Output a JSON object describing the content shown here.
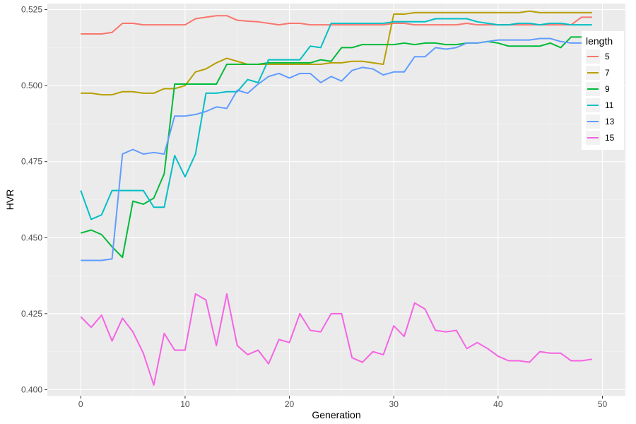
{
  "chart_data": {
    "type": "line",
    "title": "",
    "xlabel": "Generation",
    "ylabel": "HVR",
    "xlim": [
      -3.2,
      52.2
    ],
    "ylim": [
      0.398,
      0.527
    ],
    "x_ticks": [
      0,
      10,
      20,
      30,
      40,
      50
    ],
    "x_tick_labels": [
      "0",
      "10",
      "20",
      "30",
      "40",
      "50"
    ],
    "y_ticks": [
      0.4,
      0.425,
      0.45,
      0.475,
      0.5,
      0.525
    ],
    "y_tick_labels": [
      "0.400",
      "0.425",
      "0.450",
      "0.475",
      "0.500",
      "0.525"
    ],
    "grid": true,
    "panel_background": "#ebebeb",
    "legend": {
      "title": "length",
      "position": "right"
    },
    "x": [
      0,
      1,
      2,
      3,
      4,
      5,
      6,
      7,
      8,
      9,
      10,
      11,
      12,
      13,
      14,
      15,
      16,
      17,
      18,
      19,
      20,
      21,
      22,
      23,
      24,
      25,
      26,
      27,
      28,
      29,
      30,
      31,
      32,
      33,
      34,
      35,
      36,
      37,
      38,
      39,
      40,
      41,
      42,
      43,
      44,
      45,
      46,
      47,
      48,
      49
    ],
    "series": [
      {
        "name": "5",
        "color": "#F8766D",
        "values": [
          0.517,
          0.517,
          0.517,
          0.5175,
          0.5205,
          0.5205,
          0.52,
          0.52,
          0.52,
          0.52,
          0.52,
          0.522,
          0.5225,
          0.523,
          0.523,
          0.5215,
          0.5212,
          0.521,
          0.5205,
          0.52,
          0.5205,
          0.5205,
          0.52,
          0.52,
          0.52,
          0.52,
          0.52,
          0.52,
          0.52,
          0.52,
          0.5205,
          0.5205,
          0.52,
          0.52,
          0.52,
          0.52,
          0.52,
          0.5205,
          0.52,
          0.52,
          0.52,
          0.52,
          0.52,
          0.52,
          0.52,
          0.52,
          0.52,
          0.52,
          0.5225,
          0.5225
        ]
      },
      {
        "name": "7",
        "color": "#B79F00",
        "values": [
          0.4975,
          0.4975,
          0.497,
          0.497,
          0.498,
          0.498,
          0.4975,
          0.4975,
          0.499,
          0.499,
          0.5,
          0.5045,
          0.5055,
          0.5075,
          0.509,
          0.508,
          0.507,
          0.507,
          0.507,
          0.507,
          0.507,
          0.507,
          0.507,
          0.507,
          0.5075,
          0.5075,
          0.508,
          0.508,
          0.5075,
          0.507,
          0.5235,
          0.5235,
          0.524,
          0.524,
          0.524,
          0.524,
          0.524,
          0.524,
          0.524,
          0.524,
          0.524,
          0.524,
          0.524,
          0.5245,
          0.524,
          0.524,
          0.524,
          0.524,
          0.524,
          0.524
        ]
      },
      {
        "name": "9",
        "color": "#00BA38",
        "values": [
          0.4515,
          0.4525,
          0.451,
          0.447,
          0.4435,
          0.462,
          0.461,
          0.463,
          0.471,
          0.5005,
          0.5005,
          0.5005,
          0.5005,
          0.5005,
          0.507,
          0.507,
          0.507,
          0.507,
          0.5075,
          0.5075,
          0.5075,
          0.5075,
          0.5075,
          0.5085,
          0.508,
          0.5125,
          0.5125,
          0.5135,
          0.5135,
          0.5135,
          0.5135,
          0.514,
          0.5135,
          0.514,
          0.514,
          0.5135,
          0.5135,
          0.514,
          0.514,
          0.5145,
          0.514,
          0.513,
          0.513,
          0.513,
          0.513,
          0.514,
          0.5125,
          0.516,
          0.516,
          0.516
        ]
      },
      {
        "name": "11",
        "color": "#00BFC4",
        "values": [
          0.4655,
          0.456,
          0.4575,
          0.4655,
          0.4655,
          0.4655,
          0.4655,
          0.46,
          0.46,
          0.477,
          0.47,
          0.4775,
          0.4975,
          0.4975,
          0.498,
          0.498,
          0.502,
          0.501,
          0.5085,
          0.5085,
          0.5085,
          0.5085,
          0.513,
          0.5125,
          0.5205,
          0.5205,
          0.5205,
          0.5205,
          0.5205,
          0.5205,
          0.521,
          0.521,
          0.521,
          0.521,
          0.522,
          0.522,
          0.522,
          0.522,
          0.521,
          0.5205,
          0.52,
          0.52,
          0.5205,
          0.5205,
          0.52,
          0.5205,
          0.5205,
          0.52,
          0.52,
          0.52
        ]
      },
      {
        "name": "13",
        "color": "#619CFF",
        "values": [
          0.4425,
          0.4425,
          0.4425,
          0.443,
          0.4775,
          0.479,
          0.4775,
          0.478,
          0.4775,
          0.49,
          0.49,
          0.4905,
          0.4915,
          0.493,
          0.4925,
          0.4985,
          0.4975,
          0.5005,
          0.503,
          0.504,
          0.5025,
          0.504,
          0.504,
          0.501,
          0.503,
          0.5015,
          0.505,
          0.506,
          0.5055,
          0.5035,
          0.5045,
          0.5045,
          0.5095,
          0.5095,
          0.5125,
          0.512,
          0.5125,
          0.514,
          0.514,
          0.5145,
          0.515,
          0.515,
          0.515,
          0.515,
          0.5155,
          0.5155,
          0.5145,
          0.514,
          0.514,
          0.514
        ]
      },
      {
        "name": "15",
        "color": "#F564E3",
        "values": [
          0.424,
          0.4205,
          0.4245,
          0.416,
          0.4235,
          0.419,
          0.412,
          0.4015,
          0.4185,
          0.413,
          0.413,
          0.4315,
          0.4295,
          0.4145,
          0.4315,
          0.4145,
          0.4115,
          0.413,
          0.4085,
          0.4165,
          0.4155,
          0.425,
          0.4195,
          0.419,
          0.425,
          0.425,
          0.4105,
          0.409,
          0.4125,
          0.4115,
          0.421,
          0.4175,
          0.4285,
          0.4265,
          0.4195,
          0.419,
          0.4195,
          0.4135,
          0.4155,
          0.4135,
          0.411,
          0.4095,
          0.4095,
          0.409,
          0.4125,
          0.412,
          0.412,
          0.4095,
          0.4095,
          0.41
        ]
      }
    ]
  }
}
